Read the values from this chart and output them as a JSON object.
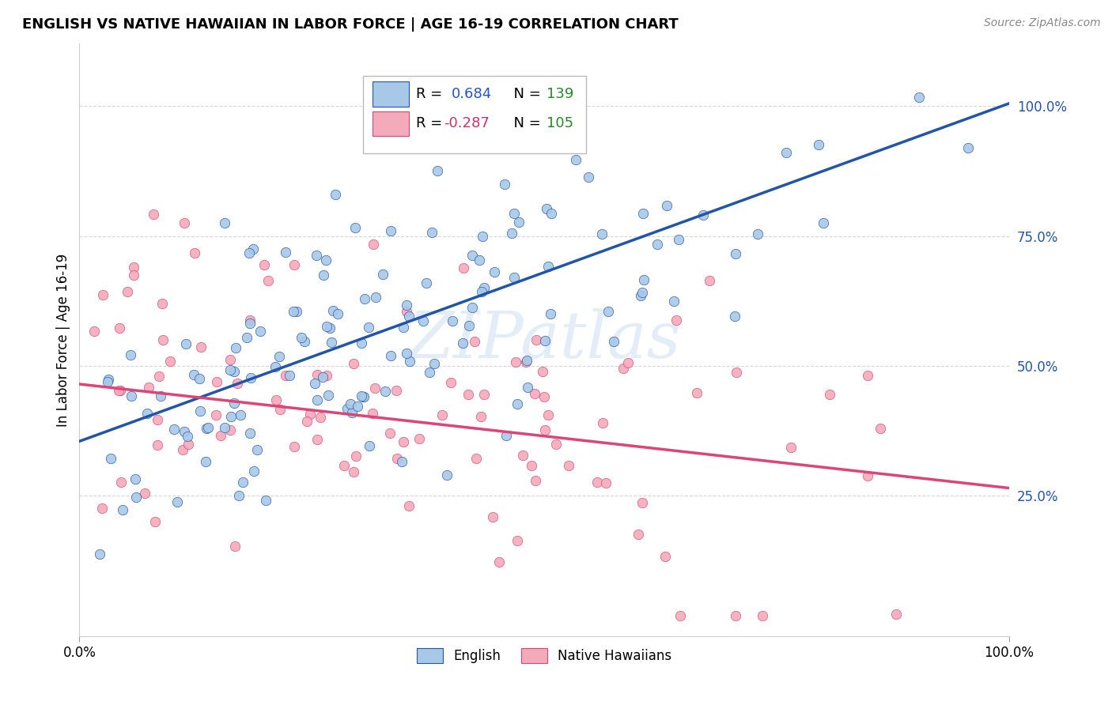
{
  "title": "ENGLISH VS NATIVE HAWAIIAN IN LABOR FORCE | AGE 16-19 CORRELATION CHART",
  "source": "Source: ZipAtlas.com",
  "ylabel": "In Labor Force | Age 16-19",
  "legend_labels": [
    "English",
    "Native Hawaiians"
  ],
  "blue_color": "#A8C8E8",
  "pink_color": "#F4AABA",
  "blue_line_color": "#2255AA",
  "pink_line_color": "#DD4477",
  "legend_r_color_blue": "#2255CC",
  "legend_r_color_pink": "#CC3366",
  "legend_n_color": "#228B22",
  "watermark": "ZIPatlas",
  "blue_line_x": [
    0.0,
    1.0
  ],
  "blue_line_y": [
    0.355,
    1.005
  ],
  "pink_line_x": [
    0.0,
    1.0
  ],
  "pink_line_y": [
    0.465,
    0.265
  ],
  "xlim": [
    0.0,
    1.0
  ],
  "ylim": [
    -0.02,
    1.12
  ],
  "ytick_vals": [
    0.25,
    0.5,
    0.75,
    1.0
  ],
  "ytick_labels": [
    "25.0%",
    "50.0%",
    "75.0%",
    "100.0%"
  ],
  "xtick_vals": [
    0.0,
    1.0
  ],
  "xtick_labels": [
    "0.0%",
    "100.0%"
  ],
  "R_blue": 0.684,
  "N_blue": 139,
  "R_pink": -0.287,
  "N_pink": 105
}
